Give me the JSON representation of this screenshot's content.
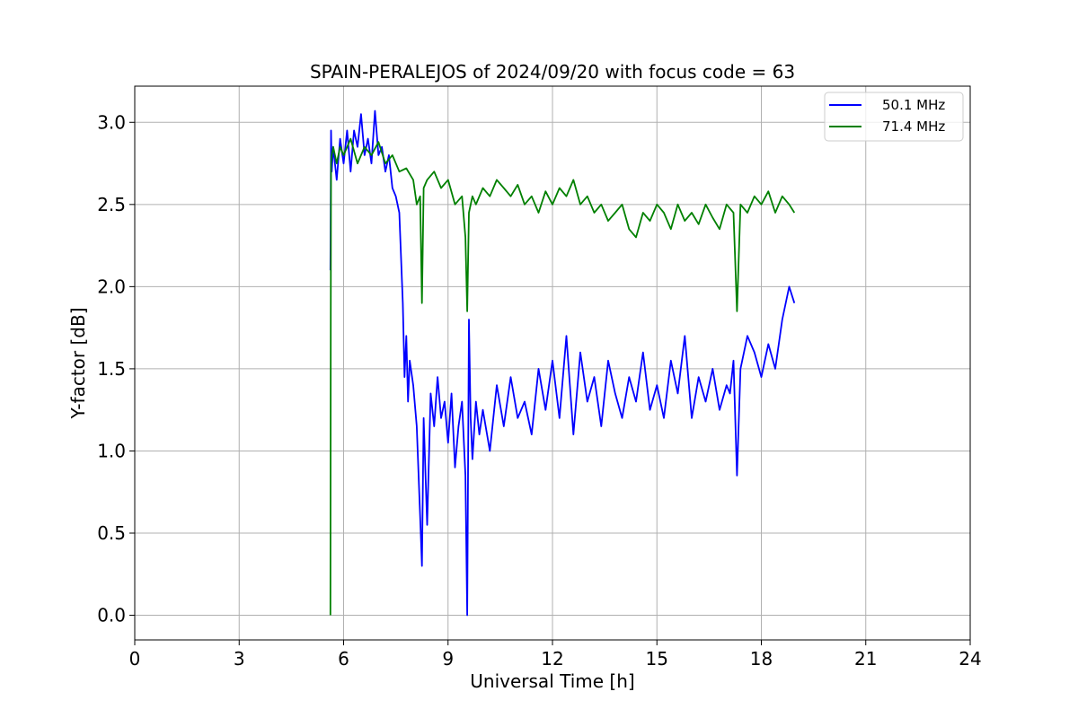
{
  "chart_data": {
    "type": "line",
    "title": "SPAIN-PERALEJOS of 2024/09/20 with focus code = 63",
    "xlabel": "Universal Time [h]",
    "ylabel": "Y-factor [dB]",
    "xlim": [
      0,
      24
    ],
    "ylim": [
      -0.15,
      3.22
    ],
    "xticks": [
      0,
      3,
      6,
      9,
      12,
      15,
      18,
      21,
      24
    ],
    "xtick_labels": [
      "0",
      "3",
      "6",
      "9",
      "12",
      "15",
      "18",
      "21",
      "24"
    ],
    "yticks": [
      0.0,
      0.5,
      1.0,
      1.5,
      2.0,
      2.5,
      3.0
    ],
    "ytick_labels": [
      "0.0",
      "0.5",
      "1.0",
      "1.5",
      "2.0",
      "2.5",
      "3.0"
    ],
    "grid": true,
    "legend_position": "top-right",
    "series": [
      {
        "name": "50.1 MHz",
        "color": "#0000ff",
        "x": [
          5.62,
          5.64,
          5.66,
          5.7,
          5.8,
          5.9,
          6.0,
          6.1,
          6.2,
          6.3,
          6.4,
          6.5,
          6.6,
          6.7,
          6.8,
          6.9,
          7.0,
          7.1,
          7.2,
          7.3,
          7.4,
          7.5,
          7.6,
          7.7,
          7.75,
          7.8,
          7.85,
          7.9,
          8.0,
          8.1,
          8.2,
          8.25,
          8.3,
          8.4,
          8.5,
          8.6,
          8.7,
          8.8,
          8.9,
          9.0,
          9.1,
          9.2,
          9.3,
          9.4,
          9.5,
          9.55,
          9.6,
          9.65,
          9.7,
          9.8,
          9.9,
          10.0,
          10.2,
          10.4,
          10.6,
          10.8,
          11.0,
          11.2,
          11.4,
          11.6,
          11.8,
          12.0,
          12.2,
          12.4,
          12.6,
          12.8,
          13.0,
          13.2,
          13.4,
          13.6,
          13.8,
          14.0,
          14.2,
          14.4,
          14.6,
          14.8,
          15.0,
          15.2,
          15.4,
          15.6,
          15.8,
          16.0,
          16.2,
          16.4,
          16.6,
          16.8,
          17.0,
          17.1,
          17.2,
          17.3,
          17.4,
          17.6,
          17.8,
          18.0,
          18.2,
          18.4,
          18.6,
          18.8,
          18.95
        ],
        "y": [
          2.1,
          2.95,
          2.7,
          2.85,
          2.65,
          2.9,
          2.75,
          2.95,
          2.7,
          2.95,
          2.85,
          3.05,
          2.8,
          2.9,
          2.75,
          3.07,
          2.8,
          2.85,
          2.7,
          2.8,
          2.6,
          2.55,
          2.45,
          1.9,
          1.45,
          1.7,
          1.3,
          1.55,
          1.4,
          1.15,
          0.6,
          0.3,
          1.2,
          0.55,
          1.35,
          1.15,
          1.45,
          1.2,
          1.3,
          1.05,
          1.35,
          0.9,
          1.15,
          1.3,
          0.85,
          0.0,
          1.8,
          1.2,
          0.95,
          1.3,
          1.1,
          1.25,
          1.0,
          1.4,
          1.15,
          1.45,
          1.2,
          1.3,
          1.1,
          1.5,
          1.25,
          1.55,
          1.2,
          1.7,
          1.1,
          1.6,
          1.3,
          1.45,
          1.15,
          1.55,
          1.35,
          1.2,
          1.45,
          1.3,
          1.6,
          1.25,
          1.4,
          1.2,
          1.55,
          1.35,
          1.7,
          1.2,
          1.45,
          1.3,
          1.5,
          1.25,
          1.4,
          1.35,
          1.55,
          0.85,
          1.5,
          1.7,
          1.6,
          1.45,
          1.65,
          1.5,
          1.8,
          2.0,
          1.9
        ]
      },
      {
        "name": "71.4 MHz",
        "color": "#008000",
        "x": [
          5.62,
          5.63,
          5.64,
          5.66,
          5.7,
          5.8,
          5.9,
          6.0,
          6.2,
          6.4,
          6.6,
          6.8,
          7.0,
          7.2,
          7.4,
          7.6,
          7.8,
          8.0,
          8.1,
          8.2,
          8.25,
          8.3,
          8.4,
          8.6,
          8.8,
          9.0,
          9.2,
          9.4,
          9.5,
          9.55,
          9.6,
          9.7,
          9.8,
          10.0,
          10.2,
          10.4,
          10.6,
          10.8,
          11.0,
          11.2,
          11.4,
          11.6,
          11.8,
          12.0,
          12.2,
          12.4,
          12.6,
          12.8,
          13.0,
          13.2,
          13.4,
          13.6,
          13.8,
          14.0,
          14.2,
          14.4,
          14.6,
          14.8,
          15.0,
          15.2,
          15.4,
          15.6,
          15.8,
          16.0,
          16.2,
          16.4,
          16.6,
          16.8,
          17.0,
          17.2,
          17.3,
          17.4,
          17.6,
          17.8,
          18.0,
          18.2,
          18.4,
          18.6,
          18.8,
          18.95
        ],
        "y": [
          0.0,
          1.8,
          2.75,
          2.8,
          2.85,
          2.75,
          2.85,
          2.8,
          2.9,
          2.75,
          2.85,
          2.8,
          2.88,
          2.75,
          2.8,
          2.7,
          2.72,
          2.65,
          2.5,
          2.55,
          1.9,
          2.6,
          2.65,
          2.7,
          2.6,
          2.65,
          2.5,
          2.55,
          2.3,
          1.85,
          2.45,
          2.55,
          2.5,
          2.6,
          2.55,
          2.65,
          2.6,
          2.55,
          2.62,
          2.5,
          2.55,
          2.45,
          2.58,
          2.5,
          2.6,
          2.55,
          2.65,
          2.5,
          2.55,
          2.45,
          2.5,
          2.4,
          2.45,
          2.5,
          2.35,
          2.3,
          2.45,
          2.4,
          2.5,
          2.45,
          2.35,
          2.5,
          2.4,
          2.45,
          2.38,
          2.5,
          2.42,
          2.35,
          2.5,
          2.45,
          1.85,
          2.5,
          2.45,
          2.55,
          2.5,
          2.58,
          2.45,
          2.55,
          2.5,
          2.45
        ]
      }
    ]
  }
}
